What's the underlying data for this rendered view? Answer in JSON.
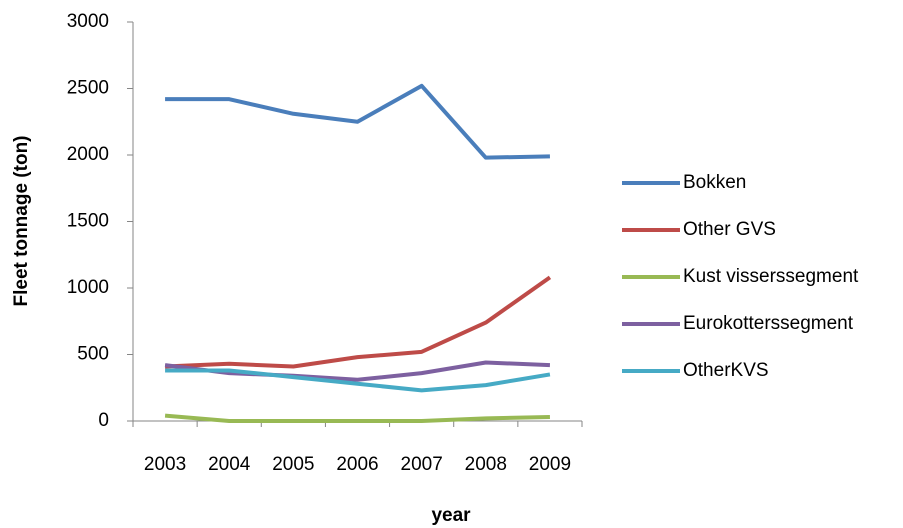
{
  "chart_data": {
    "type": "line",
    "x_label": "year",
    "y_label": "Fleet tonnage (ton)",
    "categories": [
      "2003",
      "2004",
      "2005",
      "2006",
      "2007",
      "2008",
      "2009"
    ],
    "series": [
      {
        "name": "Bokken",
        "color": "#4a7ebb",
        "values": [
          2420,
          2420,
          2310,
          2250,
          2520,
          1980,
          1990
        ]
      },
      {
        "name": "Other GVS",
        "color": "#be4b48",
        "values": [
          410,
          430,
          410,
          480,
          520,
          740,
          1080
        ]
      },
      {
        "name": "Kust visserssegment",
        "color": "#98b954",
        "values": [
          40,
          0,
          0,
          0,
          0,
          20,
          30
        ]
      },
      {
        "name": "Eurokotterssegment",
        "color": "#7d60a0",
        "values": [
          420,
          360,
          340,
          310,
          360,
          440,
          420
        ]
      },
      {
        "name": "OtherKVS",
        "color": "#46aac5",
        "values": [
          380,
          380,
          330,
          280,
          230,
          270,
          350
        ]
      }
    ],
    "ylim": [
      0,
      3000
    ],
    "yticks": [
      0,
      500,
      1000,
      1500,
      2000,
      2500,
      3000
    ],
    "grid": false,
    "legend": "right"
  }
}
